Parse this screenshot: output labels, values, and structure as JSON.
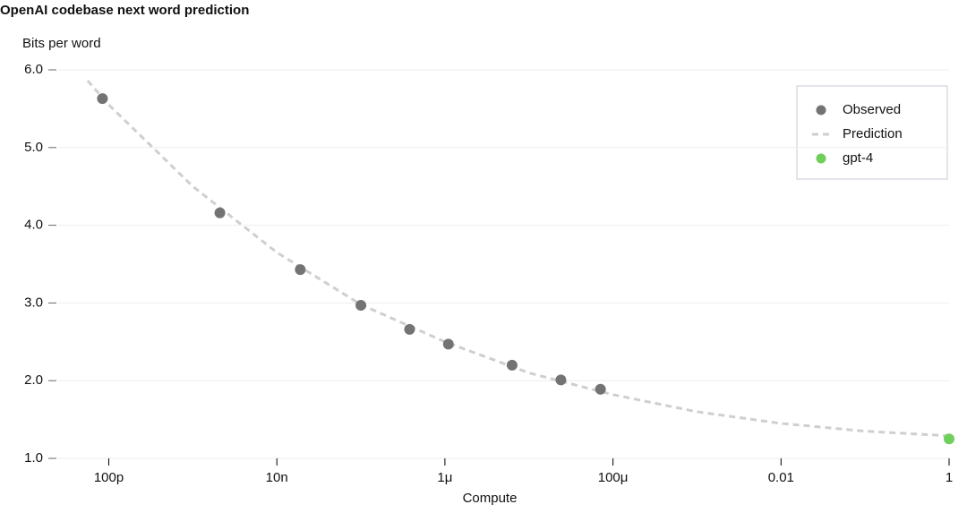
{
  "chart_data": {
    "type": "line",
    "title": "OpenAI codebase next word prediction",
    "y_label": "Bits per word",
    "x_label": "Compute",
    "xscale": "log",
    "grid": true,
    "legend": "upper right",
    "xlim": [
      2.5e-11,
      1
    ],
    "ylim": [
      1.0,
      6.0
    ],
    "xticks": [
      {
        "value": 1e-10,
        "label": "100p"
      },
      {
        "value": 1e-08,
        "label": "10n"
      },
      {
        "value": 1e-06,
        "label": "1μ"
      },
      {
        "value": 0.0001,
        "label": "100μ"
      },
      {
        "value": 0.01,
        "label": "0.01"
      },
      1
    ],
    "yticks": [
      {
        "value": 1,
        "label": "1.0"
      },
      {
        "value": 2,
        "label": "2.0"
      },
      {
        "value": 3,
        "label": "3.0"
      },
      {
        "value": 4,
        "label": "4.0"
      },
      {
        "value": 5,
        "label": "5.0"
      },
      {
        "value": 6,
        "label": "6.0"
      }
    ],
    "series": [
      {
        "name": "Observed",
        "color": "#737373",
        "kind": "scatter",
        "x": [
          8.4e-11,
          2.1e-09,
          1.9e-08,
          1e-07,
          3.8e-07,
          1.1e-06,
          6.3e-06,
          2.4e-05,
          7.1e-05
        ],
        "values": [
          5.63,
          4.16,
          3.43,
          2.97,
          2.66,
          2.47,
          2.2,
          2.01,
          1.89
        ]
      },
      {
        "name": "Prediction",
        "color": "#cfcfcf",
        "kind": "dashed",
        "x": [
          5.6e-11,
          1e-10,
          1e-09,
          1e-08,
          1e-07,
          1e-06,
          1e-05,
          0.0001,
          0.001,
          0.01,
          0.1,
          1
        ],
        "values": [
          5.86,
          5.55,
          4.5,
          3.65,
          2.98,
          2.5,
          2.1,
          1.82,
          1.6,
          1.45,
          1.35,
          1.29
        ]
      },
      {
        "name": "gpt-4",
        "color": "#6fcf5a",
        "kind": "scatter",
        "x": [
          1
        ],
        "values": [
          1.25
        ]
      }
    ]
  }
}
